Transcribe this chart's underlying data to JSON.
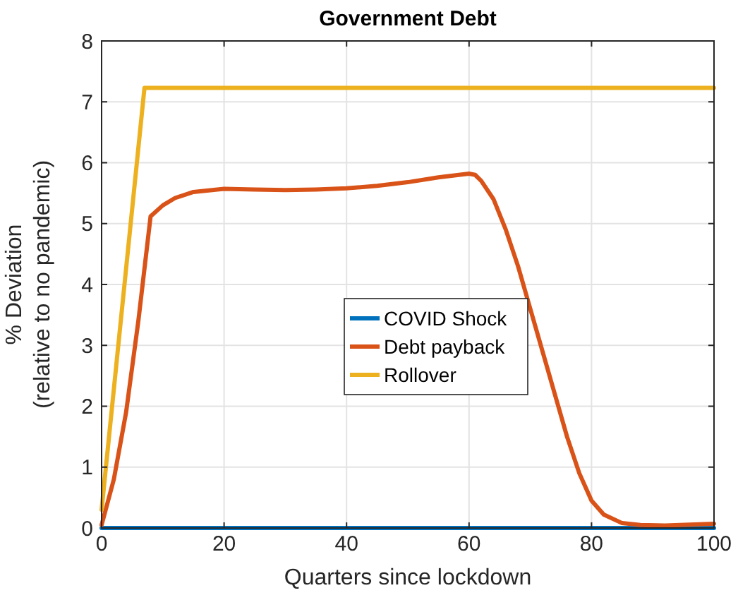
{
  "chart_data": {
    "type": "line",
    "title": "Government Debt",
    "xlabel": "Quarters since lockdown",
    "ylabel": "% Deviation\n(relative to no pandemic)",
    "xlim": [
      0,
      100
    ],
    "ylim": [
      0,
      8
    ],
    "xticks": [
      0,
      20,
      40,
      60,
      80,
      100
    ],
    "yticks": [
      0,
      1,
      2,
      3,
      4,
      5,
      6,
      7,
      8
    ],
    "grid": true,
    "legend": "center",
    "line_style": "solid",
    "series": [
      {
        "name": "COVID Shock",
        "color": "#0072bd",
        "x": [
          0,
          100
        ],
        "values": [
          0,
          0
        ]
      },
      {
        "name": "Debt payback",
        "color": "#d95319",
        "x": [
          0,
          2,
          4,
          6,
          8,
          10,
          12,
          15,
          20,
          25,
          30,
          35,
          40,
          45,
          50,
          55,
          60,
          61,
          62,
          64,
          66,
          68,
          70,
          72,
          74,
          76,
          78,
          80,
          82,
          85,
          88,
          92,
          100
        ],
        "values": [
          0.05,
          0.8,
          1.9,
          3.4,
          5.12,
          5.3,
          5.42,
          5.52,
          5.57,
          5.56,
          5.55,
          5.56,
          5.58,
          5.62,
          5.68,
          5.76,
          5.82,
          5.8,
          5.7,
          5.4,
          4.9,
          4.3,
          3.6,
          2.9,
          2.2,
          1.5,
          0.9,
          0.45,
          0.22,
          0.08,
          0.05,
          0.04,
          0.07
        ]
      },
      {
        "name": "Rollover",
        "color": "#edb120",
        "x": [
          0,
          7,
          100
        ],
        "values": [
          0.3,
          7.23,
          7.23
        ]
      }
    ]
  }
}
